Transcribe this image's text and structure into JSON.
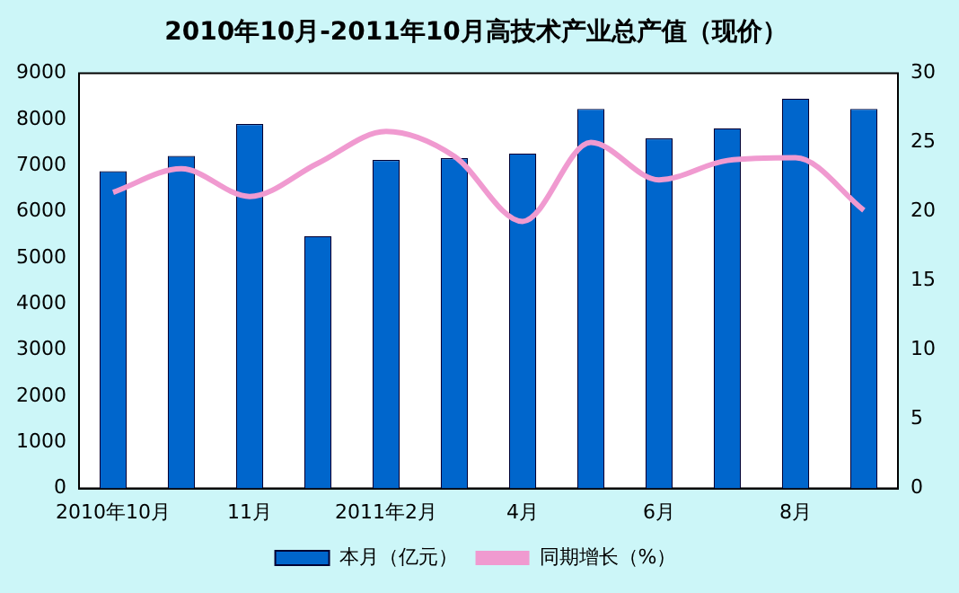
{
  "chart_data": {
    "type": "bar",
    "title": "2010年10月-2011年10月高技术产业总产值（现价）",
    "categories": [
      "2010年10月",
      null,
      "11月",
      null,
      "2011年2月",
      null,
      "4月",
      null,
      "6月",
      null,
      "8月",
      null
    ],
    "series": [
      {
        "name": "本月（亿元）",
        "color": "#0066cc",
        "values": [
          6880,
          7210,
          7900,
          5470,
          7120,
          7160,
          7260,
          8230,
          7590,
          7810,
          8450,
          8230
        ]
      },
      {
        "name": "同期增长（%）",
        "type": "line",
        "axis": "y2",
        "color": "#f09ad0",
        "values": [
          21.4,
          23.1,
          21.1,
          23.5,
          25.8,
          24.0,
          19.3,
          25.0,
          22.3,
          23.7,
          23.9,
          20.1
        ]
      }
    ],
    "ylim": [
      0,
      9000
    ],
    "yticks": [
      0,
      1000,
      2000,
      3000,
      4000,
      5000,
      6000,
      7000,
      8000,
      9000
    ],
    "y2lim": [
      0,
      30
    ],
    "y2ticks": [
      0,
      5,
      10,
      15,
      20,
      25,
      30
    ],
    "grid": false,
    "legend": "bottom",
    "marker": "none"
  }
}
